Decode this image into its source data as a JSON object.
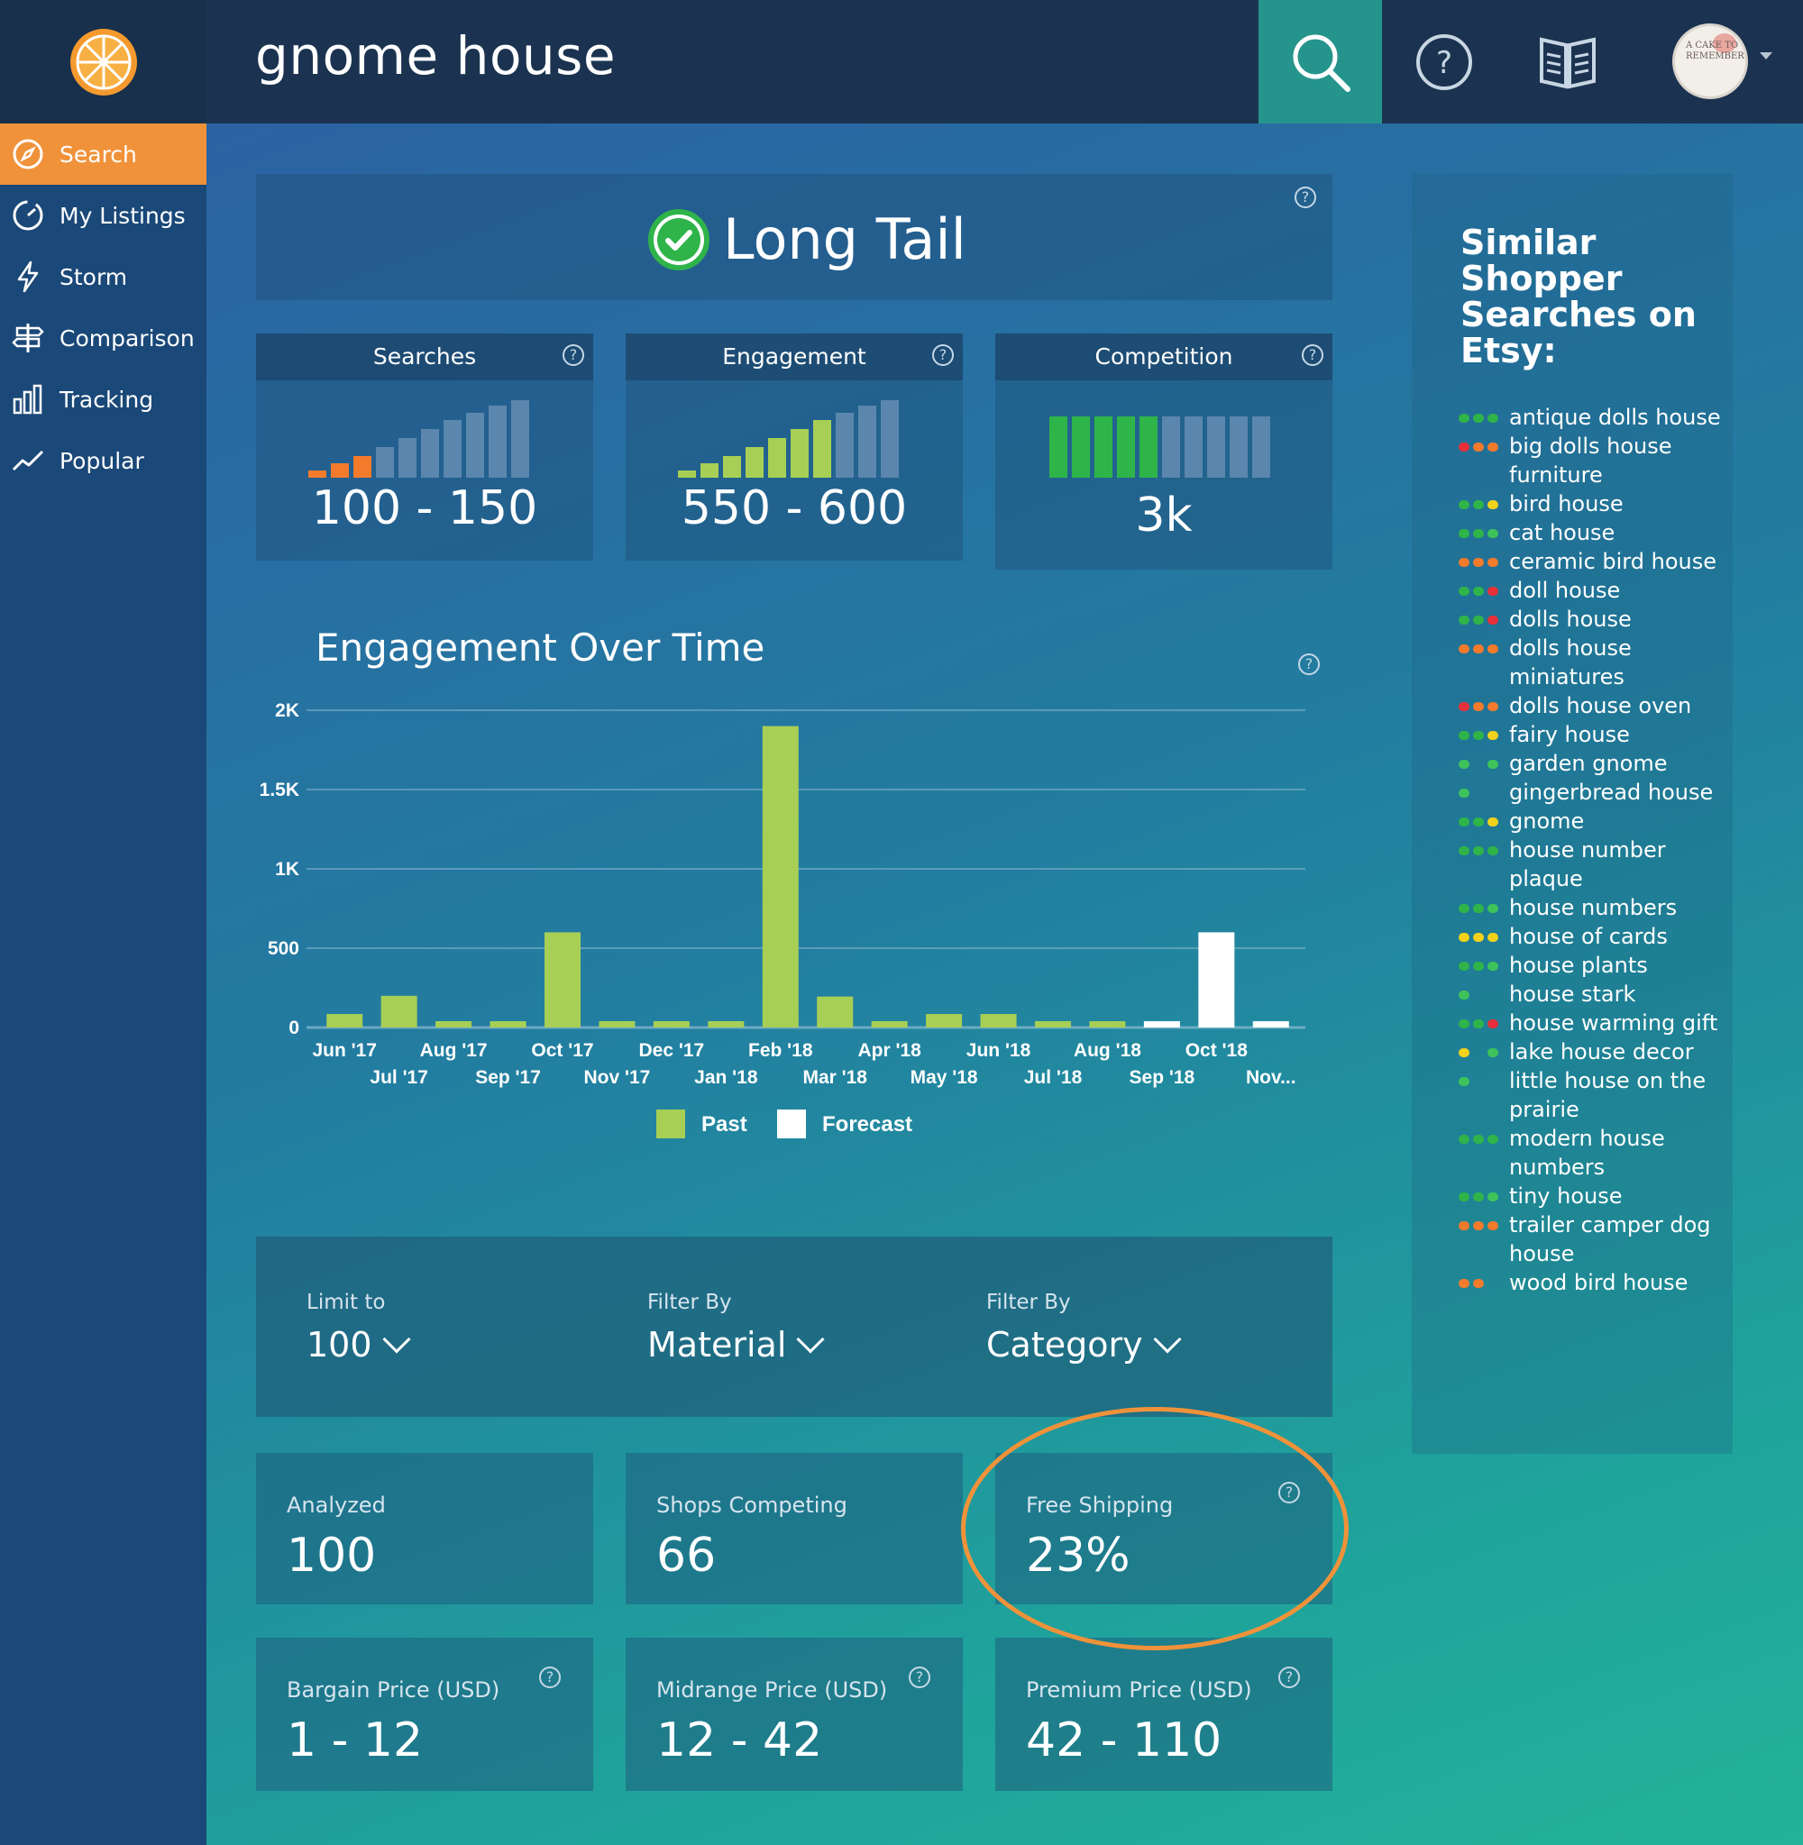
{
  "header": {
    "app_title": "gnome house",
    "logo_icon": "orange-slice-icon",
    "search_icon": "search-icon",
    "help_icon": "help-icon",
    "book_icon": "book-icon",
    "avatar_text": "A CAKE TO REMEMBER"
  },
  "sidebar": {
    "items": [
      {
        "label": "Search",
        "icon": "compass-icon",
        "active": true
      },
      {
        "label": "My Listings",
        "icon": "gauge-icon",
        "active": false
      },
      {
        "label": "Storm",
        "icon": "lightning-icon",
        "active": false
      },
      {
        "label": "Comparison",
        "icon": "signpost-icon",
        "active": false
      },
      {
        "label": "Tracking",
        "icon": "bar-chart-icon",
        "active": false
      },
      {
        "label": "Popular",
        "icon": "trend-line-icon",
        "active": false
      }
    ]
  },
  "long_tail": {
    "label": "Long Tail"
  },
  "metrics": [
    {
      "title": "Searches",
      "value": "100 - 150"
    },
    {
      "title": "Engagement",
      "value": "550 - 600"
    },
    {
      "title": "Competition",
      "value": "3k"
    }
  ],
  "colors": {
    "accent": "#f0923a",
    "teal": "#25948c",
    "past": "#a8cf55",
    "forecast": "#ffffff",
    "green": "#2fb44a",
    "red": "#e8303a",
    "yellow": "#f3d21b",
    "orange": "#f47a2c",
    "light_green": "#3ec35a"
  },
  "chart_data": {
    "type": "bar",
    "title": "Engagement Over Time",
    "xlabel": "",
    "ylabel": "",
    "ylim": [
      0,
      2000
    ],
    "yticks": [
      "0",
      "500",
      "1K",
      "1.5K",
      "2K"
    ],
    "ytick_values": [
      0,
      500,
      1000,
      1500,
      2000
    ],
    "categories": [
      "Jun '17",
      "Jul '17",
      "Aug '17",
      "Sep '17",
      "Oct '17",
      "Nov '17",
      "Dec '17",
      "Jan '18",
      "Feb '18",
      "Mar '18",
      "Apr '18",
      "May '18",
      "Jun '18",
      "Jul '18",
      "Aug '18",
      "Sep '18",
      "Oct '18",
      "Nov..."
    ],
    "series": [
      {
        "name": "Past",
        "values": [
          85,
          200,
          40,
          40,
          600,
          40,
          40,
          40,
          1900,
          195,
          40,
          85,
          85,
          40,
          40,
          0,
          0,
          0
        ]
      },
      {
        "name": "Forecast",
        "values": [
          0,
          0,
          0,
          0,
          0,
          0,
          0,
          0,
          0,
          0,
          0,
          0,
          0,
          0,
          0,
          40,
          600,
          40
        ]
      }
    ],
    "legend": "bottom",
    "grid": true
  },
  "filters": [
    {
      "label": "Limit to",
      "value": "100"
    },
    {
      "label": "Filter By",
      "value": "Material"
    },
    {
      "label": "Filter By",
      "value": "Category"
    }
  ],
  "stats": [
    {
      "label": "Analyzed",
      "value": "100"
    },
    {
      "label": "Shops Competing",
      "value": "66"
    },
    {
      "label": "Free Shipping",
      "value": "23%"
    },
    {
      "label": "Bargain Price (USD)",
      "value": "1 - 12"
    },
    {
      "label": "Midrange Price (USD)",
      "value": "12 - 42"
    },
    {
      "label": "Premium Price (USD)",
      "value": "42 - 110"
    }
  ],
  "similar": {
    "title": "Similar Shopper Searches on Etsy:",
    "items": [
      {
        "text": "antique dolls house",
        "dots": [
          "green",
          "green",
          "green"
        ]
      },
      {
        "text": "big dolls house furniture",
        "dots": [
          "red",
          "orange",
          "orange"
        ]
      },
      {
        "text": "bird house",
        "dots": [
          "green",
          "green",
          "yellow"
        ]
      },
      {
        "text": "cat house",
        "dots": [
          "green",
          "green",
          "light_green"
        ]
      },
      {
        "text": "ceramic bird house",
        "dots": [
          "orange",
          "orange",
          "orange"
        ]
      },
      {
        "text": "doll house",
        "dots": [
          "green",
          "green",
          "red"
        ]
      },
      {
        "text": "dolls house",
        "dots": [
          "green",
          "green",
          "red"
        ]
      },
      {
        "text": "dolls house miniatures",
        "dots": [
          "orange",
          "orange",
          "orange"
        ]
      },
      {
        "text": "dolls house oven",
        "dots": [
          "red",
          "orange",
          "orange"
        ]
      },
      {
        "text": "fairy house",
        "dots": [
          "green",
          "green",
          "yellow"
        ]
      },
      {
        "text": "garden gnome",
        "dots": [
          "light_green",
          "",
          "light_green"
        ]
      },
      {
        "text": "gingerbread house",
        "dots": [
          "light_green",
          "",
          ""
        ]
      },
      {
        "text": "gnome",
        "dots": [
          "green",
          "green",
          "yellow"
        ]
      },
      {
        "text": "house number plaque",
        "dots": [
          "green",
          "green",
          "green"
        ]
      },
      {
        "text": "house numbers",
        "dots": [
          "green",
          "green",
          "light_green"
        ]
      },
      {
        "text": "house of cards",
        "dots": [
          "yellow",
          "yellow",
          "yellow"
        ]
      },
      {
        "text": "house plants",
        "dots": [
          "green",
          "green",
          "light_green"
        ]
      },
      {
        "text": "house stark",
        "dots": [
          "light_green",
          "",
          ""
        ]
      },
      {
        "text": "house warming gift",
        "dots": [
          "green",
          "green",
          "red"
        ]
      },
      {
        "text": "lake house decor",
        "dots": [
          "yellow",
          "",
          "light_green"
        ]
      },
      {
        "text": "little house on the prairie",
        "dots": [
          "light_green",
          "",
          ""
        ]
      },
      {
        "text": "modern house numbers",
        "dots": [
          "green",
          "green",
          "green"
        ]
      },
      {
        "text": "tiny house",
        "dots": [
          "green",
          "green",
          "light_green"
        ]
      },
      {
        "text": "trailer camper dog house",
        "dots": [
          "orange",
          "orange",
          "orange"
        ]
      },
      {
        "text": "wood bird house",
        "dots": [
          "orange",
          "orange",
          ""
        ]
      }
    ]
  }
}
